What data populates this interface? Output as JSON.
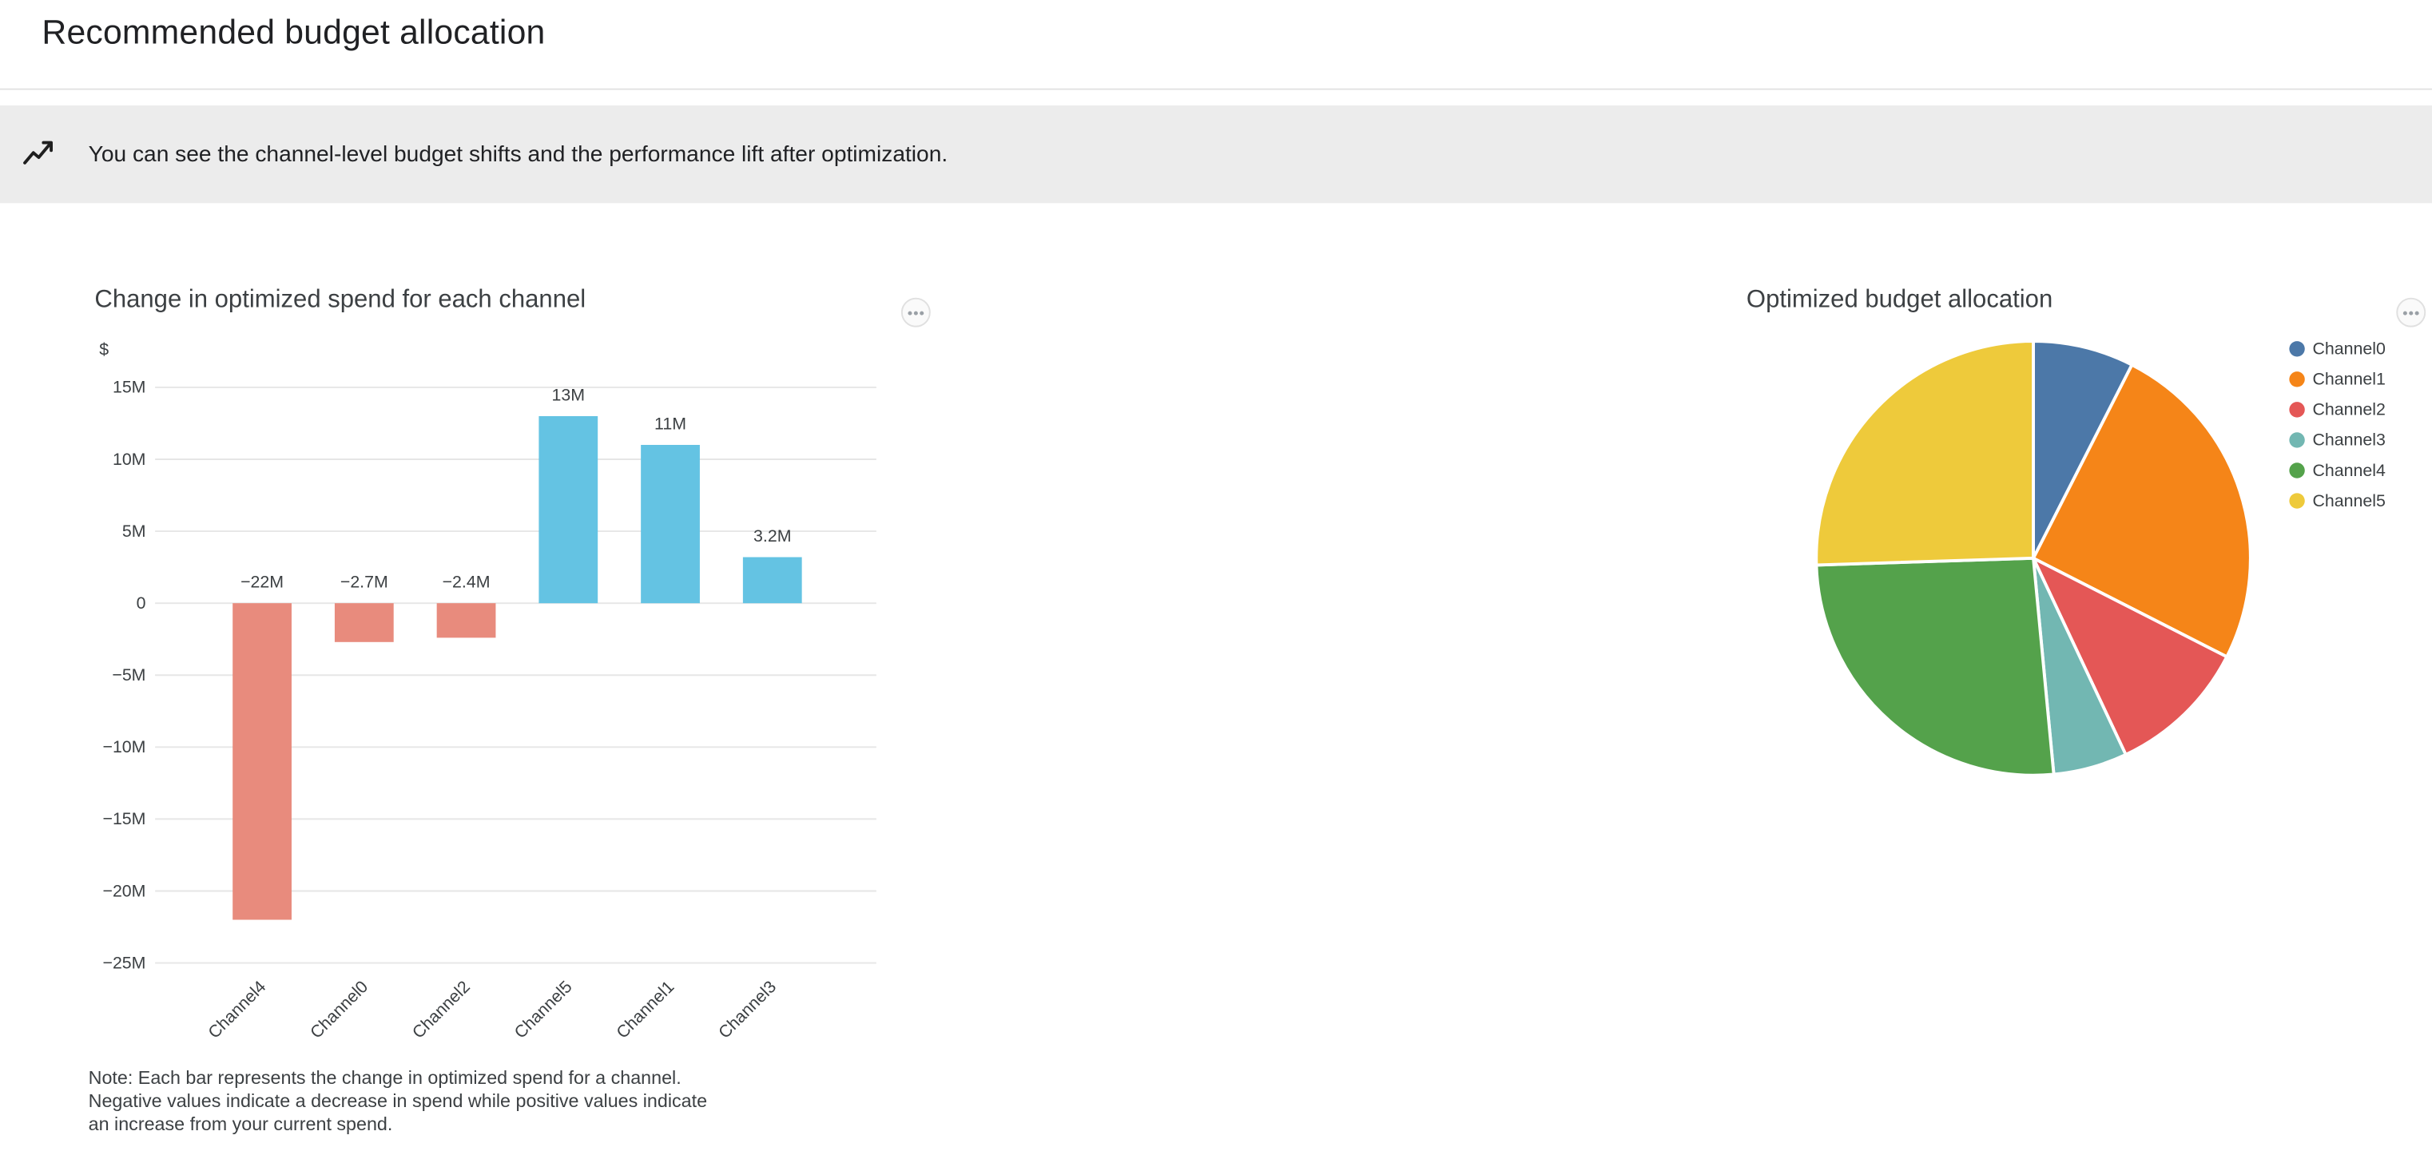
{
  "page_title": "Recommended budget allocation",
  "banner": {
    "icon": "insights-icon",
    "text": "You can see the channel-level budget shifts and the performance lift after optimization."
  },
  "spend_chart_note": "Note: Each bar represents the change in optimized spend for a channel. Negative values indicate a decrease in spend while positive values indicate an increase from your current spend.",
  "chart_data": [
    {
      "type": "bar",
      "title": "Change in optimized spend for each channel",
      "ylabel": "$",
      "xlabel": "",
      "categories": [
        "Channel4",
        "Channel0",
        "Channel2",
        "Channel5",
        "Channel1",
        "Channel3"
      ],
      "values": [
        -22,
        -2.7,
        -2.4,
        13,
        11,
        3.2
      ],
      "unit": "millions",
      "value_labels": [
        "−22M",
        "−2.7M",
        "−2.4M",
        "13M",
        "11M",
        "3.2M"
      ],
      "y_ticks": [
        {
          "value": 15,
          "label": "15M"
        },
        {
          "value": 10,
          "label": "10M"
        },
        {
          "value": 5,
          "label": "5M"
        },
        {
          "value": 0,
          "label": "0"
        },
        {
          "value": -5,
          "label": "−5M"
        },
        {
          "value": -10,
          "label": "−10M"
        },
        {
          "value": -15,
          "label": "−15M"
        },
        {
          "value": -20,
          "label": "−20M"
        },
        {
          "value": -25,
          "label": "−25M"
        }
      ],
      "ylim": [
        -25,
        15
      ],
      "grid": true,
      "colors": {
        "positive": "#64c3e3",
        "negative": "#e88b7d"
      },
      "x_tick_rotation": -45
    },
    {
      "type": "pie",
      "title": "Optimized budget allocation",
      "legend_position": "right",
      "series": [
        {
          "name": "Channel0",
          "percent": 7.5,
          "color": "#4c78a8"
        },
        {
          "name": "Channel1",
          "percent": 25.0,
          "color": "#f58518"
        },
        {
          "name": "Channel2",
          "percent": 10.5,
          "color": "#e45756"
        },
        {
          "name": "Channel3",
          "percent": 5.5,
          "color": "#72b7b2"
        },
        {
          "name": "Channel4",
          "percent": 26.0,
          "color": "#54a24b"
        },
        {
          "name": "Channel5",
          "percent": 25.5,
          "color": "#eeca3b"
        }
      ]
    }
  ]
}
